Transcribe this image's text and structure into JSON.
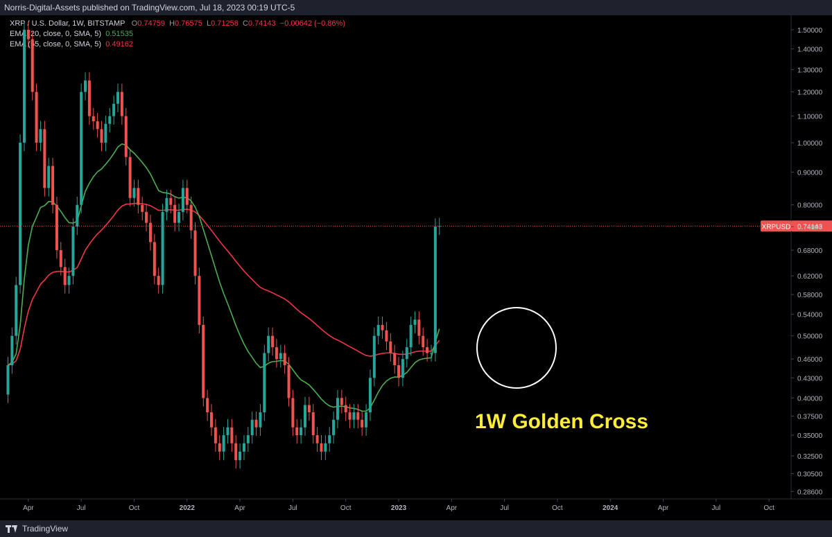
{
  "header": {
    "published": "Norris-Digital-Assets published on TradingView.com, Jul 18, 2023 00:19 UTC-5"
  },
  "legend": {
    "symbol": "XRP / U.S. Dollar, 1W, BITSTAMP",
    "o_label": "O",
    "o_value": "0.74759",
    "h_label": "H",
    "h_value": "0.76575",
    "l_label": "L",
    "l_value": "0.71258",
    "c_label": "C",
    "c_value": "0.74143",
    "change": "−0.00642 (−0.86%)",
    "ema20_label": "EMA (20, close, 0, SMA, 5)",
    "ema20_value": "0.51535",
    "ema55_label": "EMA (55, close, 0, SMA, 5)",
    "ema55_value": "0.49162"
  },
  "footer": {
    "brand": "TradingView"
  },
  "colors": {
    "up": "#26a69a",
    "down": "#ef5350",
    "ema20": "#4caf50",
    "ema55": "#f23645",
    "annotation": "#ffeb3b",
    "background": "#000000"
  },
  "chart_data": {
    "type": "candlestick",
    "symbol": "XRPUSD",
    "timeframe": "1W",
    "y_scale": "log",
    "ylim": [
      0.2785,
      1.58
    ],
    "y_ticks": [
      0.286,
      0.305,
      0.325,
      0.35,
      0.375,
      0.4,
      0.43,
      0.46,
      0.5,
      0.54,
      0.58,
      0.62,
      0.68,
      0.74,
      0.8,
      0.9,
      1.0,
      1.1,
      1.2,
      1.3,
      1.4,
      1.5
    ],
    "y_tick_labels": [
      "0.28600",
      "0.30500",
      "0.32500",
      "0.35000",
      "0.37500",
      "0.40000",
      "0.43000",
      "0.46000",
      "0.50000",
      "0.54000",
      "0.58000",
      "0.62000",
      "0.68000",
      "0.74000",
      "0.80000",
      "0.90000",
      "1.00000",
      "1.10000",
      "1.20000",
      "1.30000",
      "1.40000",
      "1.50000"
    ],
    "x_labels": [
      "Apr",
      "Jul",
      "Oct",
      "2022",
      "Apr",
      "Jul",
      "Oct",
      "2023",
      "Apr",
      "Jul",
      "Oct",
      "2024",
      "Apr",
      "Jul",
      "Oct"
    ],
    "x_label_bold": [
      false,
      false,
      false,
      true,
      false,
      false,
      false,
      true,
      false,
      false,
      false,
      true,
      false,
      false,
      false
    ],
    "x_label_weeks": [
      5,
      18,
      31,
      44,
      57,
      70,
      83,
      96,
      109,
      122,
      135,
      148,
      161,
      174,
      187
    ],
    "last_price": 0.74143,
    "last_price_label": "XRPUSD",
    "last_price_text": "0.74143",
    "annotation": "1W Golden Cross",
    "closes": [
      0.45,
      0.5,
      0.6,
      1.0,
      1.5,
      1.45,
      1.2,
      1.0,
      1.05,
      0.85,
      0.92,
      0.8,
      0.68,
      0.64,
      0.6,
      0.62,
      0.74,
      0.8,
      1.2,
      1.25,
      1.1,
      1.08,
      1.05,
      1.0,
      1.07,
      1.1,
      1.15,
      1.2,
      1.1,
      0.95,
      0.82,
      0.85,
      0.8,
      0.78,
      0.75,
      0.7,
      0.62,
      0.6,
      0.78,
      0.82,
      0.8,
      0.75,
      0.78,
      0.85,
      0.8,
      0.73,
      0.62,
      0.52,
      0.4,
      0.38,
      0.36,
      0.34,
      0.33,
      0.35,
      0.36,
      0.34,
      0.32,
      0.33,
      0.34,
      0.35,
      0.37,
      0.36,
      0.38,
      0.47,
      0.5,
      0.48,
      0.46,
      0.47,
      0.45,
      0.4,
      0.36,
      0.35,
      0.36,
      0.39,
      0.38,
      0.35,
      0.34,
      0.33,
      0.34,
      0.35,
      0.37,
      0.4,
      0.39,
      0.38,
      0.37,
      0.38,
      0.37,
      0.36,
      0.38,
      0.43,
      0.5,
      0.52,
      0.51,
      0.49,
      0.47,
      0.45,
      0.43,
      0.46,
      0.48,
      0.52,
      0.53,
      0.5,
      0.48,
      0.47,
      0.47,
      0.74,
      0.74143
    ]
  }
}
